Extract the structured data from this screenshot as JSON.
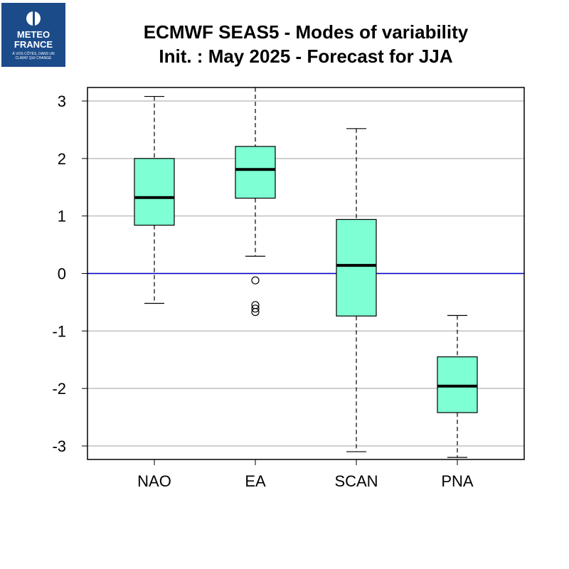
{
  "logo": {
    "line1": "METEO",
    "line2": "FRANCE",
    "line3": "À VOS CÔTÉS, DANS UN",
    "line4": "CLIMAT QUI CHANGE"
  },
  "chart_data": {
    "type": "boxplot",
    "title": "ECMWF SEAS5 - Modes of variability",
    "subtitle": "Init. : May 2025 - Forecast for JJA",
    "categories": [
      "NAO",
      "EA",
      "SCAN",
      "PNA"
    ],
    "yticks": [
      3,
      2,
      1,
      0,
      -1,
      -2,
      -3
    ],
    "ylim": [
      -3.2,
      3.25
    ],
    "grid": true,
    "reference_line": 0,
    "boxes": [
      {
        "name": "NAO",
        "whisker_low": -0.52,
        "q1": 0.84,
        "median": 1.32,
        "q3": 2.0,
        "whisker_high": 3.08,
        "outliers": []
      },
      {
        "name": "EA",
        "whisker_low": 0.3,
        "q1": 1.31,
        "median": 1.81,
        "q3": 2.21,
        "whisker_high": 3.25,
        "outliers": [
          -0.12,
          -0.55,
          -0.61,
          -0.67
        ]
      },
      {
        "name": "SCAN",
        "whisker_low": -3.1,
        "q1": -0.74,
        "median": 0.14,
        "q3": 0.94,
        "whisker_high": 2.52,
        "outliers": []
      },
      {
        "name": "PNA",
        "whisker_low": -3.2,
        "q1": -2.42,
        "median": -1.96,
        "q3": -1.45,
        "whisker_high": -0.73,
        "outliers": []
      }
    ],
    "colors": {
      "box_fill": "#7fffd4",
      "reference_line": "#0000cd",
      "grid": "#c0c0c0"
    }
  }
}
